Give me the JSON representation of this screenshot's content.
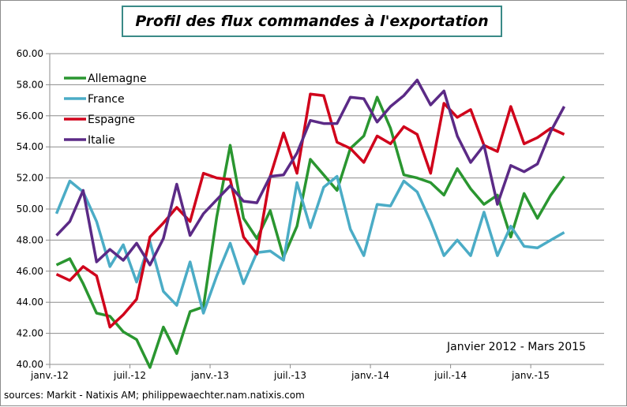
{
  "chart_data": {
    "type": "line",
    "title": "Profil des flux commandes à l'exportation",
    "annotation": "Janvier 2012 - Mars 2015",
    "source": "sources: Markit - Natixis AM; philippewaechter.nam.natixis.com",
    "x_tick_labels": [
      "janv.-12",
      "juil.-12",
      "janv.-13",
      "juil.-13",
      "janv.-14",
      "juil.-14",
      "janv.-15"
    ],
    "y_tick_labels": [
      "40.00",
      "42.00",
      "44.00",
      "46.00",
      "48.00",
      "50.00",
      "52.00",
      "54.00",
      "56.00",
      "58.00",
      "60.00"
    ],
    "ylim": [
      40,
      60
    ],
    "x_range": [
      "2012-01",
      "2015-03"
    ],
    "grid": true,
    "legend_position": "top-left",
    "series": [
      {
        "name": "Allemagne",
        "color": "#2a9630",
        "values": [
          46.4,
          46.8,
          45.2,
          43.3,
          43.1,
          42.1,
          41.6,
          39.8,
          42.4,
          40.7,
          43.4,
          43.7,
          49.5,
          54.1,
          49.4,
          48.1,
          49.9,
          46.9,
          48.9,
          53.2,
          52.2,
          51.2,
          53.9,
          54.7,
          57.2,
          55.2,
          52.2,
          52.0,
          51.7,
          50.9,
          52.6,
          51.3,
          50.3,
          50.9,
          48.2,
          51.0,
          49.4,
          50.9,
          52.1
        ]
      },
      {
        "name": "France",
        "color": "#4bacc6",
        "values": [
          49.7,
          51.8,
          51.1,
          49.2,
          46.3,
          47.7,
          45.3,
          47.9,
          44.7,
          43.8,
          46.6,
          43.3,
          45.7,
          47.8,
          45.2,
          47.2,
          47.3,
          46.7,
          51.7,
          48.8,
          51.4,
          52.1,
          48.7,
          47.0,
          50.3,
          50.2,
          51.8,
          51.1,
          49.2,
          47.0,
          48.0,
          47.0,
          49.8,
          47.0,
          48.9,
          47.6,
          47.5,
          48.0,
          48.5
        ]
      },
      {
        "name": "Espagne",
        "color": "#d0021b",
        "values": [
          45.8,
          45.4,
          46.3,
          45.7,
          42.4,
          43.2,
          44.2,
          48.2,
          49.1,
          50.1,
          49.2,
          52.3,
          52.0,
          51.9,
          48.2,
          47.1,
          52.1,
          54.9,
          52.3,
          57.4,
          57.3,
          54.3,
          53.9,
          53.0,
          54.7,
          54.2,
          55.3,
          54.8,
          52.3,
          56.8,
          55.9,
          56.4,
          54.1,
          53.7,
          56.6,
          54.2,
          54.6,
          55.2,
          54.8
        ]
      },
      {
        "name": "Italie",
        "color": "#5b2a86",
        "values": [
          48.3,
          49.2,
          51.2,
          46.6,
          47.4,
          46.7,
          47.8,
          46.4,
          48.1,
          51.6,
          48.3,
          49.7,
          50.6,
          51.5,
          50.5,
          50.4,
          52.1,
          52.2,
          53.6,
          55.7,
          55.5,
          55.5,
          57.2,
          57.1,
          55.6,
          56.6,
          57.3,
          58.3,
          56.7,
          57.6,
          54.7,
          53.0,
          54.1,
          50.3,
          52.8,
          52.4,
          52.9,
          55.0,
          56.6
        ]
      }
    ]
  }
}
